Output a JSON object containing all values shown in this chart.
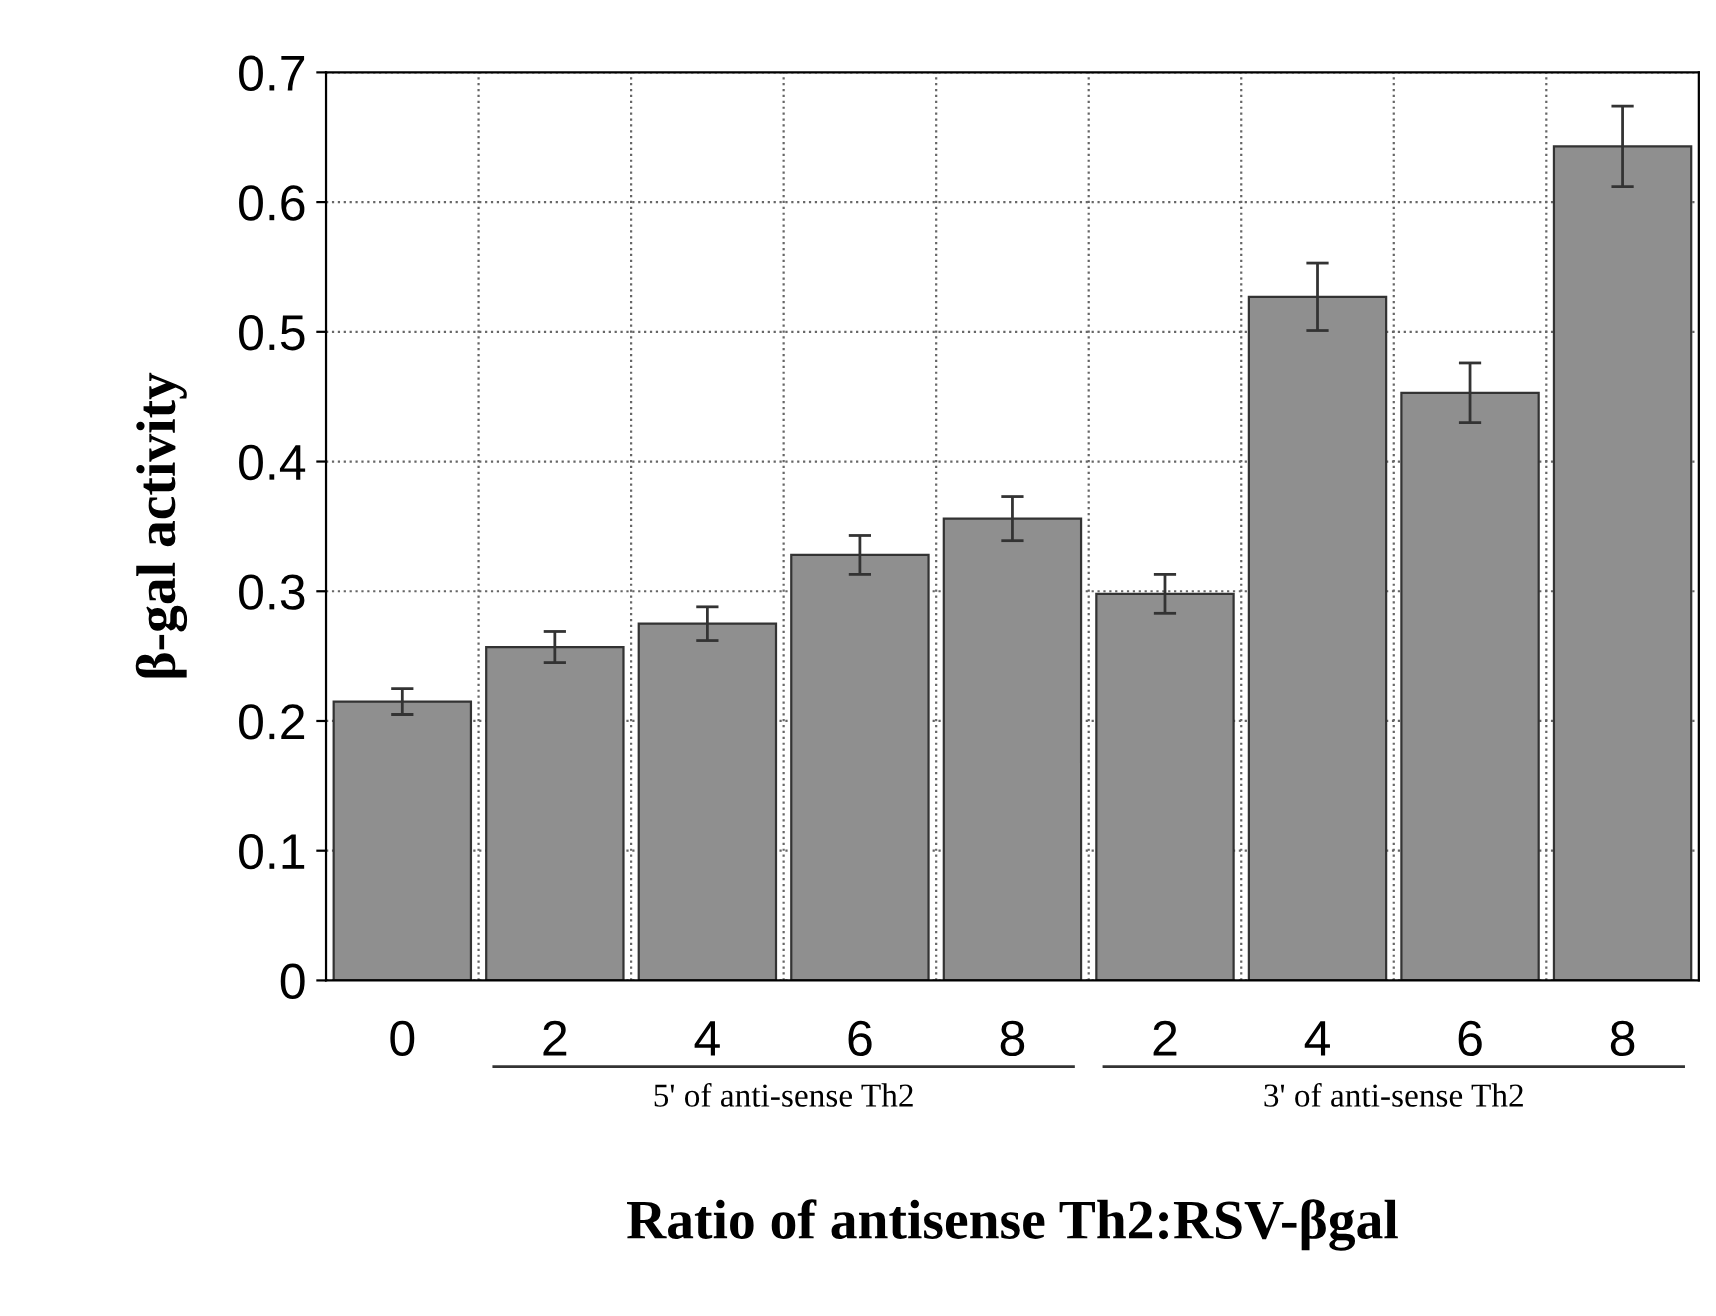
{
  "chart_data": {
    "type": "bar",
    "xlabel": "Ratio of antisense Th2:RSV-βgal",
    "ylabel": "β-gal activity",
    "categories": [
      "0",
      "2",
      "4",
      "6",
      "8",
      "2",
      "4",
      "6",
      "8"
    ],
    "values": [
      0.215,
      0.257,
      0.275,
      0.328,
      0.356,
      0.298,
      0.527,
      0.453,
      0.643
    ],
    "errors": [
      0.01,
      0.012,
      0.013,
      0.015,
      0.017,
      0.015,
      0.026,
      0.023,
      0.031
    ],
    "color": "#8f8f8f",
    "ylim": [
      0,
      0.7
    ],
    "yticks": [
      0,
      0.1,
      0.2,
      0.3,
      0.4,
      0.5,
      0.6,
      0.7
    ],
    "grid": true,
    "annotations": [
      "5' of anti-sense Th2",
      "3' of anti-sense Th2"
    ]
  }
}
